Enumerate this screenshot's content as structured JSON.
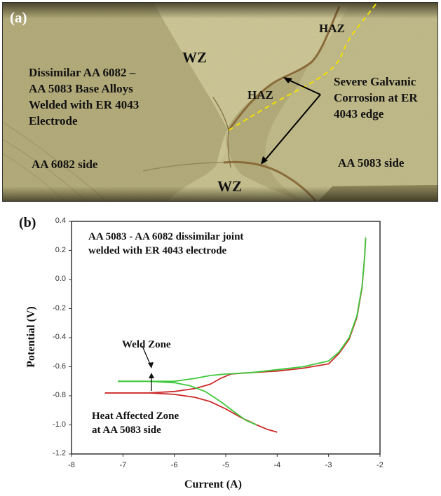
{
  "panel_a": {
    "tag": "(a)",
    "labels": {
      "description": [
        "Dissimilar AA 6082 –",
        "AA 5083 Base Alloys",
        "Welded with ER 4043",
        "Electrode"
      ],
      "left_side": "AA 6082 side",
      "right_side": "AA 5083 side",
      "wz_top": "WZ",
      "wz_bottom": "WZ",
      "haz_top": "HAZ",
      "haz_mid": "HAZ",
      "corrosion": [
        "Severe Galvanic",
        "Corrosion at ER",
        "4043 edge"
      ]
    },
    "colors": {
      "base": "#b5ad7c",
      "weld": "#cfc897",
      "fusion_line": "#8a6b3a",
      "dashed_line": "#f2e200",
      "arrow": "#000000"
    }
  },
  "panel_b": {
    "tag": "(b)",
    "annotation_title": [
      "AA 5083 - AA 6082 dissimilar joint",
      "welded with ER 4043 electrode"
    ],
    "weld_zone_label": "Weld Zone",
    "haz_label": [
      "Heat Affected Zone",
      "at AA 5083 side"
    ]
  },
  "chart_data": {
    "type": "line",
    "title": "AA 5083 - AA 6082 dissimilar joint welded with ER 4043 electrode",
    "xlabel": "Current (A)",
    "ylabel": "Potential (V)",
    "xlim": [
      -8,
      -2
    ],
    "ylim": [
      -1.2,
      0.4
    ],
    "xticks": [
      "-8",
      "-7",
      "-6",
      "-5",
      "-4",
      "-3",
      "-2"
    ],
    "yticks": [
      "0.4",
      "0.2",
      "0.0",
      "-0.2",
      "-0.4",
      "-0.6",
      "-0.8",
      "-1.0",
      "-1.2"
    ],
    "grid": false,
    "legend": "annotations (arrows)",
    "series": [
      {
        "name": "Weld Zone",
        "color": "#3ec83a",
        "cathodic": {
          "x": [
            -7.1,
            -6.5,
            -6.0,
            -5.7,
            -5.4,
            -5.1,
            -4.8,
            -4.6,
            -4.4
          ],
          "y": [
            -0.7,
            -0.7,
            -0.71,
            -0.73,
            -0.77,
            -0.84,
            -0.92,
            -0.97,
            -1.0
          ]
        },
        "anodic": {
          "x": [
            -7.1,
            -6.5,
            -6.0,
            -5.6,
            -5.3,
            -5.0,
            -4.5,
            -4.0,
            -3.5,
            -3.0,
            -2.8,
            -2.6,
            -2.45,
            -2.35,
            -2.3,
            -2.28
          ],
          "y": [
            -0.7,
            -0.7,
            -0.7,
            -0.68,
            -0.66,
            -0.65,
            -0.64,
            -0.62,
            -0.6,
            -0.56,
            -0.5,
            -0.4,
            -0.25,
            -0.05,
            0.15,
            0.29
          ]
        }
      },
      {
        "name": "Heat Affected Zone at AA 5083 side",
        "color": "#cc2a2a",
        "cathodic": {
          "x": [
            -7.35,
            -6.5,
            -6.0,
            -5.6,
            -5.3,
            -5.0,
            -4.7,
            -4.4,
            -4.2,
            -4.0
          ],
          "y": [
            -0.78,
            -0.78,
            -0.79,
            -0.81,
            -0.84,
            -0.89,
            -0.95,
            -1.0,
            -1.03,
            -1.05
          ]
        },
        "anodic": {
          "x": [
            -7.35,
            -6.5,
            -6.0,
            -5.6,
            -5.3,
            -5.1,
            -4.9,
            -4.5,
            -4.0,
            -3.5,
            -3.0,
            -2.8,
            -2.6,
            -2.45,
            -2.35,
            -2.3,
            -2.28
          ],
          "y": [
            -0.78,
            -0.78,
            -0.77,
            -0.75,
            -0.72,
            -0.68,
            -0.65,
            -0.64,
            -0.63,
            -0.61,
            -0.58,
            -0.51,
            -0.41,
            -0.26,
            -0.06,
            0.15,
            0.28
          ]
        }
      }
    ]
  }
}
